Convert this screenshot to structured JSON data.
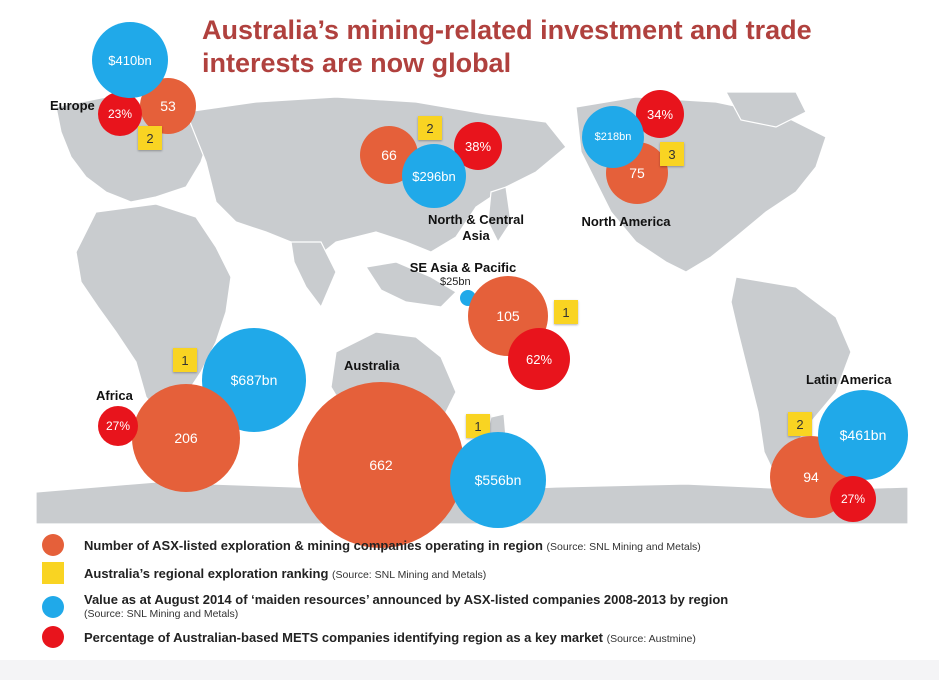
{
  "title": {
    "line1": "Australia’s mining-related investment and trade",
    "line2": "interests are now global"
  },
  "colors": {
    "count": "#e5603a",
    "value": "#20a9e9",
    "percent": "#e8141c",
    "rank": "#f9d422",
    "title": "#b0413e",
    "land": "#c9cccf"
  },
  "regions": {
    "europe": {
      "label": "Europe",
      "count": "53",
      "value": "$410bn",
      "percent": "23%",
      "rank": "2"
    },
    "nca": {
      "label_line1": "North & Central",
      "label_line2": "Asia",
      "count": "66",
      "value": "$296bn",
      "percent": "38%",
      "rank": "2"
    },
    "na": {
      "label": "North America",
      "count": "75",
      "value": "$218bn",
      "percent": "34%",
      "rank": "3"
    },
    "sea": {
      "label": "SE Asia & Pacific",
      "count": "105",
      "value": "$25bn",
      "percent": "62%",
      "rank": "1"
    },
    "africa": {
      "label": "Africa",
      "count": "206",
      "value": "$687bn",
      "percent": "27%",
      "rank": "1"
    },
    "australia": {
      "label": "Australia",
      "count": "662",
      "value": "$556bn",
      "rank": "1"
    },
    "latam": {
      "label": "Latin America",
      "count": "94",
      "value": "$461bn",
      "percent": "27%",
      "rank": "2"
    }
  },
  "legend": [
    {
      "text": "Number of ASX-listed exploration & mining companies operating in region",
      "source": "(Source: SNL Mining and Metals)",
      "marker": "count-circle"
    },
    {
      "text": "Australia’s regional exploration ranking",
      "source": "(Source: SNL Mining and Metals)",
      "marker": "rank-square"
    },
    {
      "text": "Value as at August 2014 of ‘maiden resources’ announced by ASX-listed companies 2008-2013 by region",
      "source": "(Source: SNL Mining and Metals)",
      "marker": "value-circle"
    },
    {
      "text": "Percentage of Australian-based METS companies identifying region as a key market",
      "source": "(Source: Austmine)",
      "marker": "percent-circle"
    }
  ]
}
